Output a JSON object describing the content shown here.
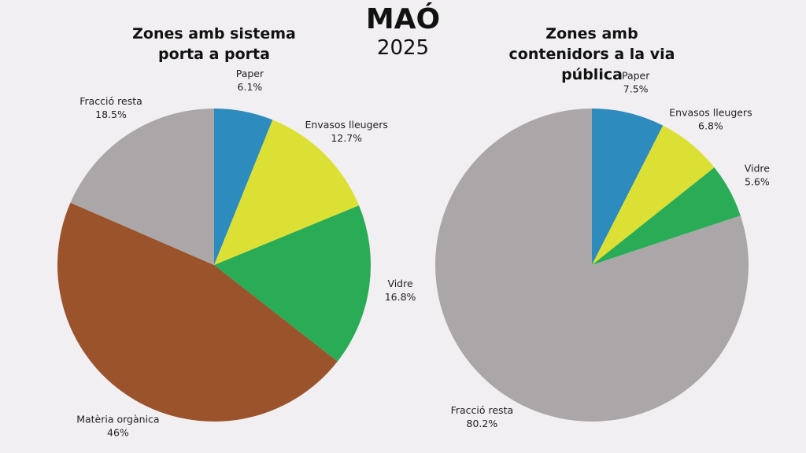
{
  "header": {
    "title": "MAÓ",
    "subtitle": "2025"
  },
  "chart_data": [
    {
      "type": "pie",
      "title": "Zones amb sistema porta a porta",
      "categories": [
        "Paper",
        "Envasos lleugers",
        "Vidre",
        "Matèria orgànica",
        "Fracció resta"
      ],
      "values": [
        6.1,
        12.7,
        16.8,
        46,
        18.5
      ],
      "value_labels": [
        "6.1%",
        "12.7%",
        "16.8%",
        "46%",
        "18.5%"
      ],
      "colors": [
        "#2e8bbd",
        "#dce034",
        "#2aab55",
        "#9a532a",
        "#aba7a9"
      ]
    },
    {
      "type": "pie",
      "title": "Zones amb contenidors a la via pública",
      "categories": [
        "Paper",
        "Envasos lleugers",
        "Vidre",
        "Fracció resta"
      ],
      "values": [
        7.5,
        6.8,
        5.6,
        80.2
      ],
      "value_labels": [
        "7.5%",
        "6.8%",
        "5.6%",
        "80.2%"
      ],
      "colors": [
        "#2e8bbd",
        "#dce034",
        "#2aab55",
        "#aba7a9"
      ]
    }
  ]
}
